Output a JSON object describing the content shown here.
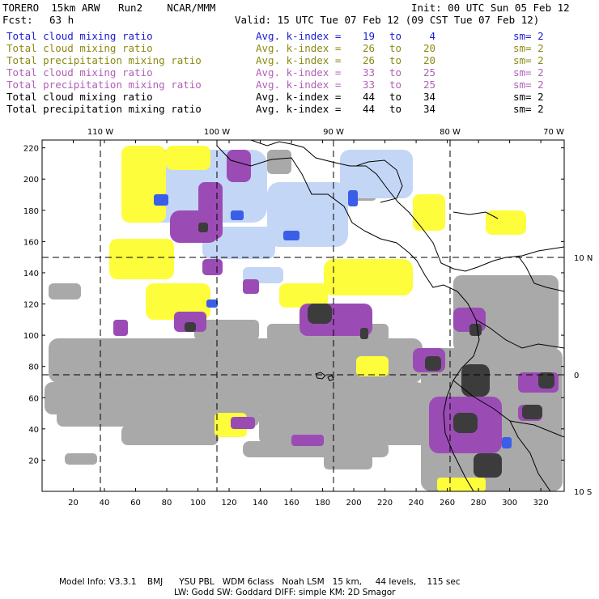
{
  "header": {
    "title": "TORERO  15km ARW   Run2    NCAR/MMM",
    "init": "Init: 00 UTC Sun 05 Feb 12",
    "fcst_label": "Fcst:",
    "fcst_value": "63 h",
    "valid": "Valid: 15 UTC Tue 07 Feb 12 (09 CST Tue 07 Feb 12)"
  },
  "legend_rows": [
    {
      "name": "Total cloud mixing ratio",
      "k_label": "Avg. k-index =",
      "k1": "19",
      "to": "to",
      "k2": "4",
      "sm": "sm= 2",
      "color": "#1a1ad6"
    },
    {
      "name": "Total cloud mixing ratio",
      "k_label": "Avg. k-index =",
      "k1": "26",
      "to": "to",
      "k2": "20",
      "sm": "sm= 2",
      "color": "#8a8a14"
    },
    {
      "name": "Total precipitation mixing ratio",
      "k_label": "Avg. k-index =",
      "k1": "26",
      "to": "to",
      "k2": "20",
      "sm": "sm= 2",
      "color": "#8a8a14"
    },
    {
      "name": "Total cloud mixing ratio",
      "k_label": "Avg. k-index =",
      "k1": "33",
      "to": "to",
      "k2": "25",
      "sm": "sm= 2",
      "color": "#b060b8"
    },
    {
      "name": "Total precipitation mixing ratio",
      "k_label": "Avg. k-index =",
      "k1": "33",
      "to": "to",
      "k2": "25",
      "sm": "sm= 2",
      "color": "#b060b8"
    },
    {
      "name": "Total cloud mixing ratio",
      "k_label": "Avg. k-index =",
      "k1": "44",
      "to": "to",
      "k2": "34",
      "sm": "sm= 2",
      "color": "#000000"
    },
    {
      "name": "Total precipitation mixing ratio",
      "k_label": "Avg. k-index =",
      "k1": "44",
      "to": "to",
      "k2": "34",
      "sm": "sm= 2",
      "color": "#000000"
    }
  ],
  "map": {
    "top_lon_labels": [
      "110 W",
      "100 W",
      "90 W",
      "80 W",
      "70 W"
    ],
    "right_lat_labels": [
      "10 N",
      "0",
      "10 S"
    ],
    "left_y_ticks": [
      "220",
      "200",
      "180",
      "160",
      "140",
      "120",
      "100",
      "80",
      "60",
      "40",
      "20"
    ],
    "bottom_x_ticks": [
      "20",
      "40",
      "60",
      "80",
      "100",
      "120",
      "140",
      "160",
      "180",
      "200",
      "220",
      "240",
      "260",
      "280",
      "300",
      "320"
    ],
    "colors": {
      "blue": "#3a5ee8",
      "light_blue": "#c4d6f6",
      "yellow": "#fdfd3c",
      "light_purple": "#c8a0d8",
      "purple": "#9b4cb4",
      "gray": "#a9a9a9",
      "dark_gray": "#3c3c3c",
      "coast": "#000000"
    }
  },
  "footer": {
    "line1": "Model Info: V3.3.1    BMJ      YSU PBL   WDM 6class   Noah LSM   15 km,     44 levels,    115 sec",
    "line2": "LW: Godd SW: Goddard DIFF: simple KM: 2D Smagor"
  }
}
